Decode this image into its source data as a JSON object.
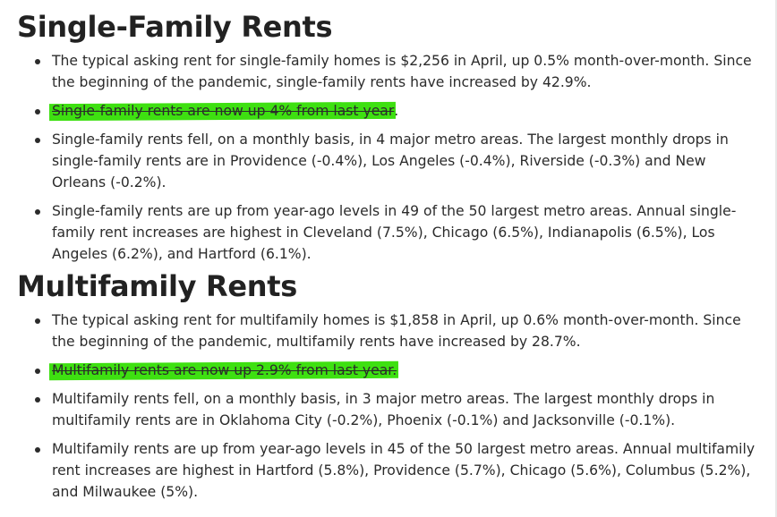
{
  "single_family": {
    "heading": "Single-Family Rents",
    "bullet1": "The typical asking rent for single-family homes is $2,256 in April, up 0.5% month-over-month. Since the beginning of the pandemic, single-family rents have increased by 42.9%.",
    "bullet2_highlighted": "Single-family rents are now up 4% from last year",
    "bullet2_tail": ".",
    "bullet3": "Single-family rents fell, on a monthly basis, in 4 major metro areas. The largest monthly drops in single-family rents are in Providence (-0.4%), Los Angeles (-0.4%), Riverside (-0.3%) and New Orleans (-0.2%).",
    "bullet4": "Single-family rents are up from year-ago levels in 49 of the 50 largest metro areas. Annual single-family rent increases are highest in Cleveland (7.5%), Chicago (6.5%), Indianapolis (6.5%), Los Angeles (6.2%), and Hartford (6.1%)."
  },
  "multifamily": {
    "heading": "Multifamily Rents",
    "bullet1": "The typical asking rent for multifamily homes is $1,858 in April, up 0.6% month-over-month. Since the beginning of the pandemic, multifamily rents have increased by 28.7%.",
    "bullet2_highlighted": "Multifamily rents are now up 2.9% from last year.",
    "bullet3": "Multifamily rents fell, on a monthly basis, in 3 major metro areas. The largest monthly drops in multifamily rents are in Oklahoma City (-0.2%), Phoenix (-0.1%) and Jacksonville (-0.1%).",
    "bullet4": "Multifamily rents are up from year-ago levels in 45 of the 50 largest metro areas. Annual multifamily rent increases are highest in Hartford (5.8%), Providence (5.7%), Chicago (5.6%), Columbus (5.2%), and Milwaukee (5%)."
  },
  "colors": {
    "highlight": "#3ee011",
    "text": "#2b2b2b",
    "heading": "#222222"
  }
}
